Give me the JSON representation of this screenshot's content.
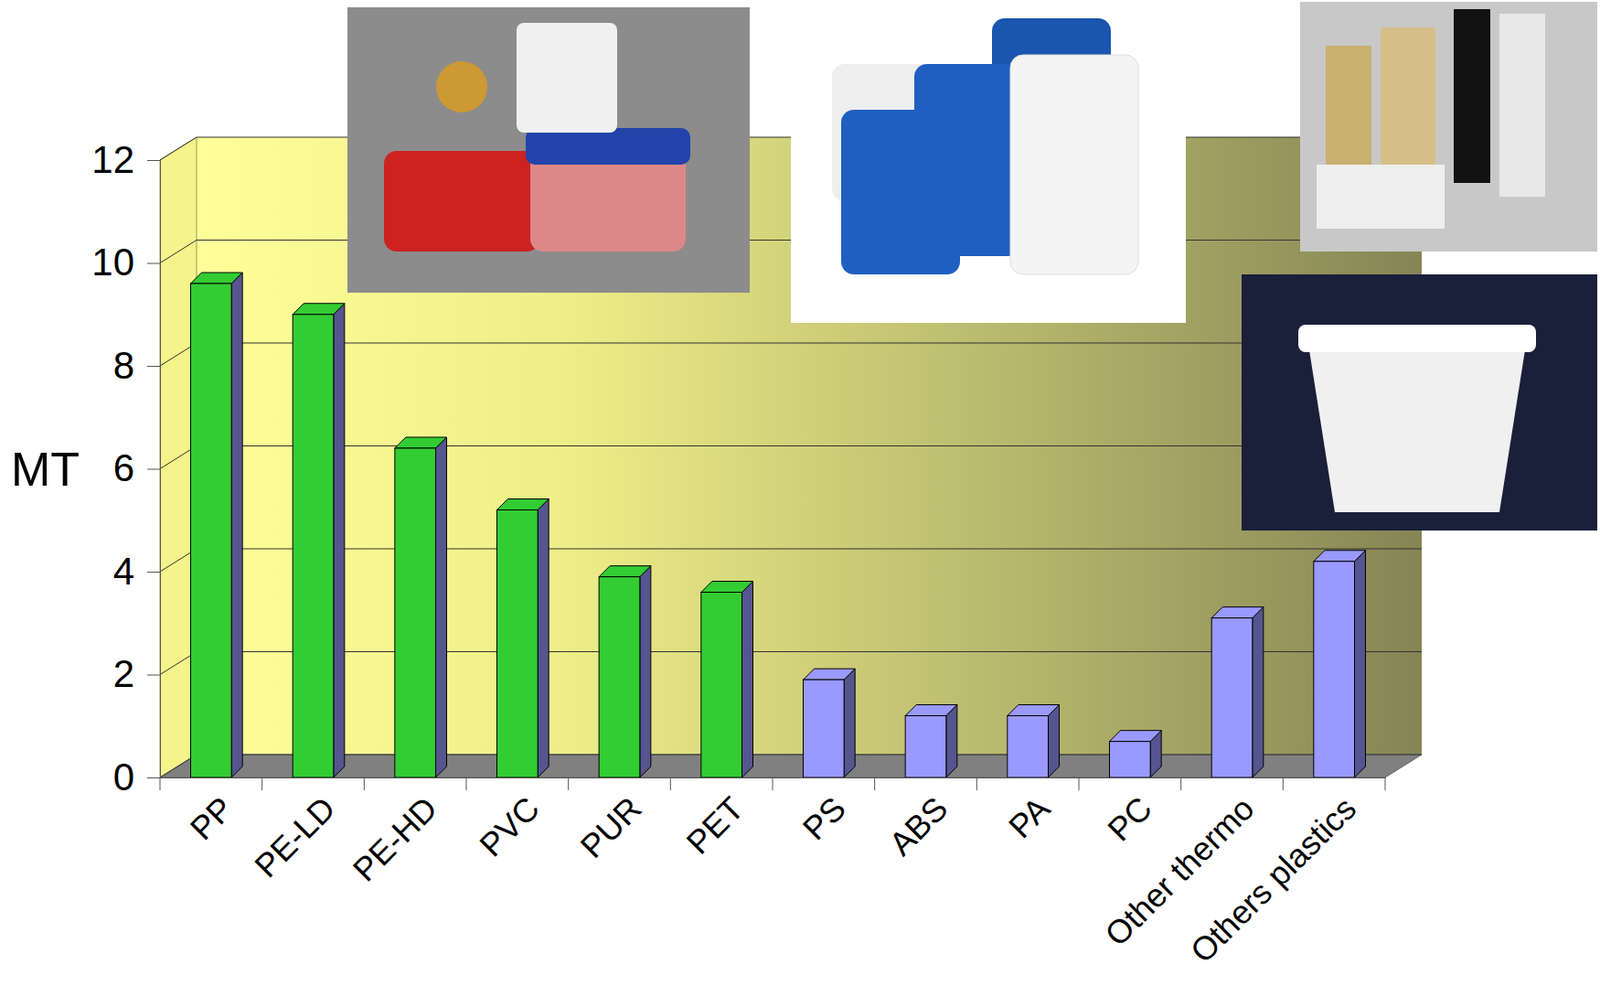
{
  "chart_data": {
    "type": "bar",
    "categories": [
      "PP",
      "PE-LD",
      "PE-HD",
      "PVC",
      "PUR",
      "PET",
      "PS",
      "ABS",
      "PA",
      "PC",
      "Other thermo",
      "Others plastics"
    ],
    "values": [
      9.6,
      9.0,
      6.4,
      5.2,
      3.9,
      3.6,
      1.9,
      1.2,
      1.2,
      0.7,
      3.1,
      4.2
    ],
    "colors": [
      "#33cc33",
      "#33cc33",
      "#33cc33",
      "#33cc33",
      "#33cc33",
      "#33cc33",
      "#9999ff",
      "#9999ff",
      "#9999ff",
      "#9999ff",
      "#9999ff",
      "#9999ff"
    ],
    "ylabel": "MT",
    "ylim": [
      0,
      12
    ],
    "yticks": [
      0,
      2,
      4,
      6,
      8,
      10,
      12
    ],
    "grid": true
  }
}
